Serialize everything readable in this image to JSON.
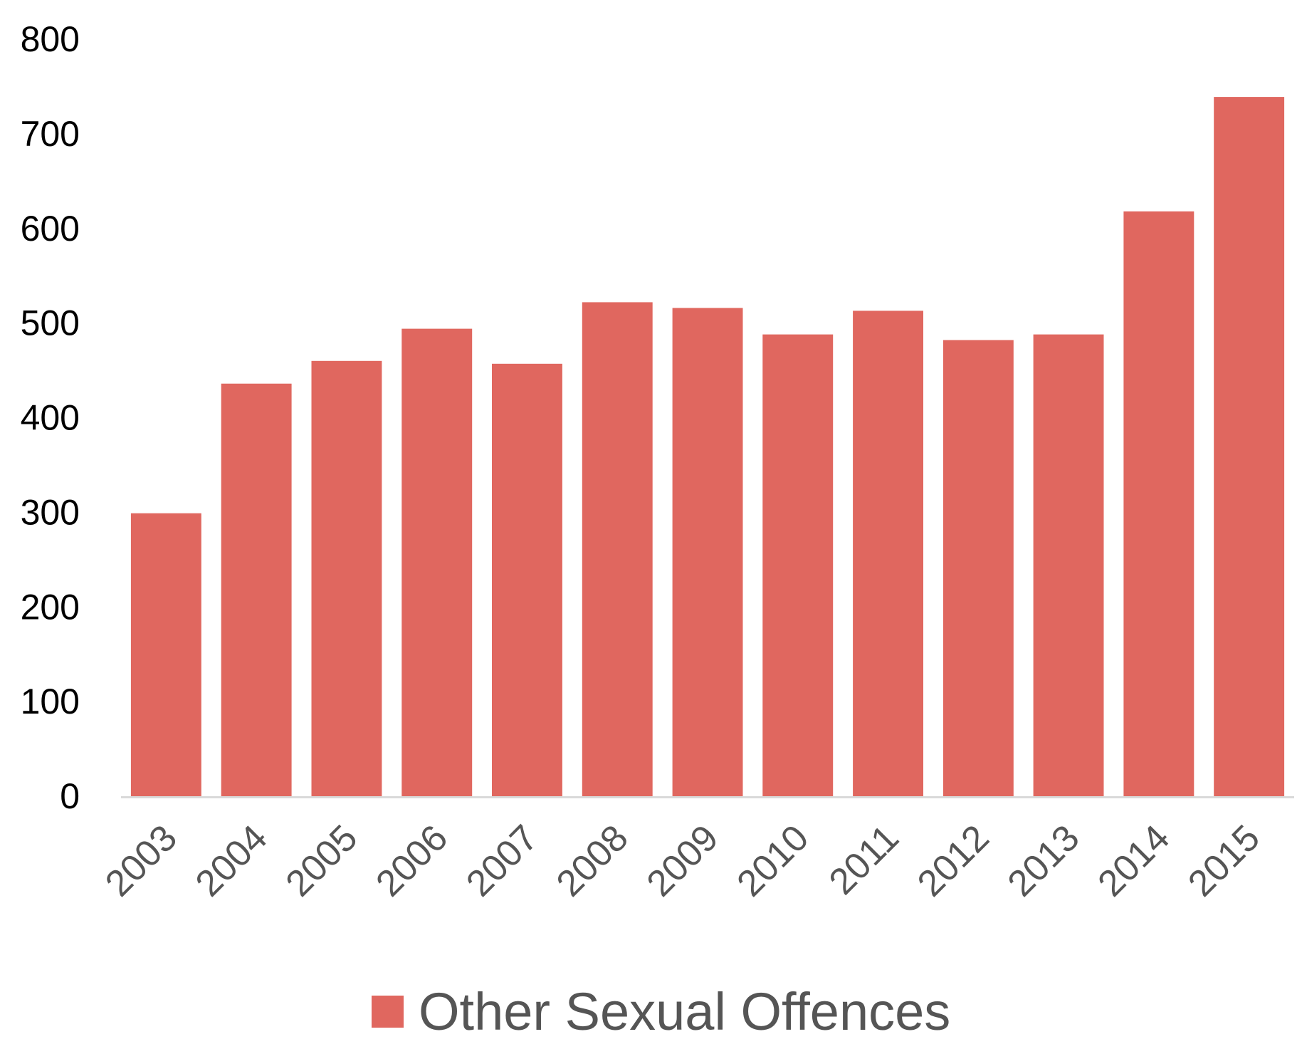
{
  "chart_data": {
    "type": "bar",
    "categories": [
      "2003",
      "2004",
      "2005",
      "2006",
      "2007",
      "2008",
      "2009",
      "2010",
      "2011",
      "2012",
      "2013",
      "2014",
      "2015"
    ],
    "series": [
      {
        "name": "Other Sexual Offences",
        "values": [
          299,
          436,
          460,
          494,
          457,
          522,
          516,
          488,
          513,
          482,
          488,
          618,
          739
        ],
        "color": "#e0675f"
      }
    ],
    "ylim": [
      0,
      800
    ],
    "yticks": [
      0,
      100,
      200,
      300,
      400,
      500,
      600,
      700,
      800
    ],
    "grid": false,
    "legend_position": "bottom",
    "colors": {
      "bar": "#e0675f",
      "axis_line": "#d9d9d9",
      "y_tick_text": "#000000",
      "x_tick_text": "#555555",
      "legend_text": "#555555"
    }
  }
}
